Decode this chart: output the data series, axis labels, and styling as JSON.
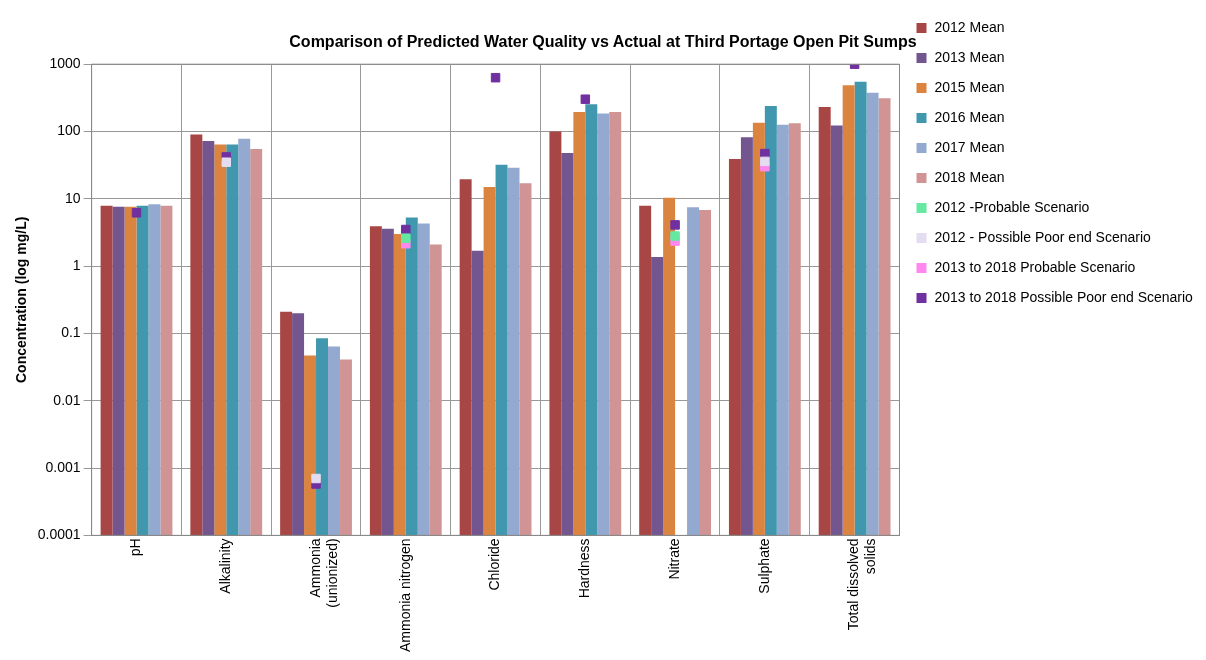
{
  "chart_data": {
    "type": "bar",
    "title": "Comparison of Predicted Water Quality vs Actual at Third Portage Open Pit Sumps",
    "ylabel": "Concentration (log mg/L)",
    "categories": [
      "pH",
      "Alkalinity",
      "Ammonia (unionized)",
      "Ammonia nitrogen",
      "Chloride",
      "Hardness",
      "Nitrate",
      "Sulphate",
      "Total dissolved solids"
    ],
    "log": "y",
    "ylim": [
      0.0001,
      1000
    ],
    "yticks": [
      0.0001,
      0.001,
      0.01,
      0.1,
      1,
      10,
      100,
      1000
    ],
    "grid": true,
    "legend": "right",
    "marker": "square",
    "series": [
      {
        "name": "2012 Mean",
        "color": "#a84545",
        "values": [
          7.9,
          90,
          0.21,
          3.9,
          19.6,
          100,
          7.9,
          39,
          232
        ]
      },
      {
        "name": "2013 Mean",
        "color": "#735590",
        "values": [
          7.6,
          72,
          0.2,
          3.6,
          1.7,
          48,
          1.37,
          82,
          123
        ]
      },
      {
        "name": "2015 Mean",
        "color": "#db8440",
        "values": [
          7.6,
          64,
          0.047,
          3.0,
          15,
          195,
          10.4,
          135,
          485
        ]
      },
      {
        "name": "2016 Mean",
        "color": "#4198ae",
        "values": [
          7.9,
          64,
          0.085,
          5.3,
          32,
          255,
          null,
          240,
          550
        ]
      },
      {
        "name": "2017 Mean",
        "color": "#93a9cf",
        "values": [
          8.3,
          78,
          0.064,
          4.3,
          29,
          185,
          7.5,
          126,
          378
        ]
      },
      {
        "name": "2018 Mean",
        "color": "#d09494",
        "values": [
          7.9,
          55,
          0.041,
          2.1,
          17,
          195,
          6.8,
          133,
          313
        ]
      },
      {
        "name": "2012 -Probable Scenario",
        "type": "scatter",
        "color": "#66e8a0",
        "x": [
          "Ammonia nitrogen",
          "Nitrate"
        ],
        "values": [
          2.6,
          2.8
        ]
      },
      {
        "name": "2012 - Possible Poor end Scenario",
        "type": "scatter",
        "color": "#e4dcf0",
        "x": [
          "Alkalinity",
          "Ammonia (unionized)",
          "Sulphate"
        ],
        "values": [
          35,
          0.0007,
          36
        ]
      },
      {
        "name": "2013 to 2018 Probable Scenario",
        "type": "scatter",
        "color": "#ff88ee",
        "x": [
          "Ammonia nitrogen",
          "Nitrate",
          "Sulphate"
        ],
        "values": [
          2.15,
          2.35,
          30
        ]
      },
      {
        "name": "2013 to 2018 Possible Poor end Scenario",
        "type": "scatter",
        "color": "#7030a0",
        "x": [
          "pH",
          "Alkalinity",
          "Ammonia (unionized)",
          "Ammonia nitrogen",
          "Chloride",
          "Hardness",
          "Nitrate",
          "Sulphate",
          "Total dissolved solids"
        ],
        "values": [
          6.2,
          42,
          0.00058,
          3.5,
          630,
          302,
          4.1,
          47,
          1000
        ]
      }
    ]
  }
}
